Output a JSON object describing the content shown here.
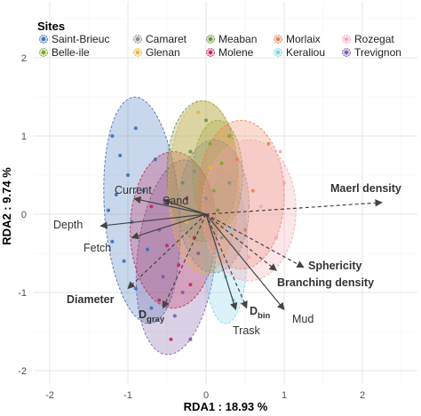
{
  "chart_data": {
    "type": "scatter",
    "subtype": "rda-biplot",
    "xlabel": "RDA1 : 18.93 %",
    "ylabel": "RDA2 : 9.74 %",
    "xlim": [
      -2.25,
      2.5
    ],
    "ylim": [
      -2.2,
      2.5
    ],
    "x_ticks": [
      -2,
      -1,
      0,
      1,
      2
    ],
    "y_ticks": [
      -2,
      -1,
      0,
      1,
      2
    ],
    "grid": true,
    "legend": {
      "title": "Sites",
      "placement": "top",
      "entries": [
        {
          "name": "Saint-Brieuc",
          "color": "#3b6fb6"
        },
        {
          "name": "Belle-ile",
          "color": "#7ca62e"
        },
        {
          "name": "Camaret",
          "color": "#8c8c8c"
        },
        {
          "name": "Glenan",
          "color": "#e8b63c"
        },
        {
          "name": "Meaban",
          "color": "#6e8f3c"
        },
        {
          "name": "Molene",
          "color": "#c2265a"
        },
        {
          "name": "Morlaix",
          "color": "#e87f55"
        },
        {
          "name": "Keraliou",
          "color": "#7fd0e8"
        },
        {
          "name": "Rozegat",
          "color": "#f4a6b4"
        },
        {
          "name": "Trevignon",
          "color": "#7d5aa6"
        }
      ]
    },
    "ellipses": [
      {
        "site": "Saint-Brieuc",
        "cx": -0.82,
        "cy": 0.05,
        "rx": 0.48,
        "ry": 1.45,
        "angle": -4
      },
      {
        "site": "Trevignon",
        "cx": -0.38,
        "cy": -0.55,
        "rx": 0.5,
        "ry": 1.25,
        "angle": 6
      },
      {
        "site": "Molene",
        "cx": -0.42,
        "cy": -0.2,
        "rx": 0.55,
        "ry": 1.0,
        "angle": 0
      },
      {
        "site": "Keraliou",
        "cx": 0.25,
        "cy": -0.45,
        "rx": 0.28,
        "ry": 0.95,
        "angle": 0
      },
      {
        "site": "Belle-ile",
        "cx": 0.15,
        "cy": 0.5,
        "rx": 0.32,
        "ry": 0.7,
        "angle": 0
      },
      {
        "site": "Meaban",
        "cx": -0.05,
        "cy": 0.55,
        "rx": 0.45,
        "ry": 0.9,
        "angle": 0
      },
      {
        "site": "Glenan",
        "cx": -0.03,
        "cy": 0.35,
        "rx": 0.45,
        "ry": 1.1,
        "angle": 0
      },
      {
        "site": "Camaret",
        "cx": 0.1,
        "cy": 0.1,
        "rx": 0.45,
        "ry": 0.85,
        "angle": 0
      },
      {
        "site": "Morlaix",
        "cx": 0.45,
        "cy": 0.25,
        "rx": 0.55,
        "ry": 0.95,
        "angle": 0
      },
      {
        "site": "Rozegat",
        "cx": 0.55,
        "cy": 0.05,
        "rx": 0.6,
        "ry": 0.9,
        "angle": 0
      }
    ],
    "vectors": [
      {
        "label": "Maerl density",
        "x": 2.25,
        "y": 0.15,
        "dashed": true,
        "bold": true
      },
      {
        "label": "Sphericity",
        "x": 1.25,
        "y": -0.68,
        "dashed": true,
        "bold": true
      },
      {
        "label": "Branching density",
        "x": 0.9,
        "y": -0.72,
        "dashed": true,
        "bold": true
      },
      {
        "label": "Diameter",
        "x": -1.0,
        "y": -0.95,
        "dashed": true,
        "bold": true
      },
      {
        "label": "Dgray",
        "x": -0.55,
        "y": -1.2,
        "dashed": true,
        "bold": true
      },
      {
        "label": "Dbin",
        "x": 0.52,
        "y": -1.2,
        "dashed": true,
        "bold": true
      },
      {
        "label": "Depth",
        "x": -1.35,
        "y": -0.15,
        "dashed": false,
        "bold": false
      },
      {
        "label": "Fetch",
        "x": -0.95,
        "y": -0.3,
        "dashed": false,
        "bold": false
      },
      {
        "label": "Current",
        "x": -0.92,
        "y": 0.2,
        "dashed": false,
        "bold": false
      },
      {
        "label": "Sand",
        "x": -0.55,
        "y": 0.18,
        "dashed": false,
        "bold": false
      },
      {
        "label": "Trask",
        "x": 0.38,
        "y": -1.22,
        "dashed": false,
        "bold": false
      },
      {
        "label": "Mud",
        "x": 1.0,
        "y": -1.22,
        "dashed": false,
        "bold": false
      }
    ],
    "points": [
      {
        "site": "Saint-Brieuc",
        "x": -1.2,
        "y": 1.0
      },
      {
        "site": "Saint-Brieuc",
        "x": -1.1,
        "y": 0.75
      },
      {
        "site": "Saint-Brieuc",
        "x": -0.9,
        "y": 1.1
      },
      {
        "site": "Saint-Brieuc",
        "x": -1.0,
        "y": 0.5
      },
      {
        "site": "Saint-Brieuc",
        "x": -0.8,
        "y": 0.3
      },
      {
        "site": "Saint-Brieuc",
        "x": -1.15,
        "y": 0.25
      },
      {
        "site": "Saint-Brieuc",
        "x": -0.95,
        "y": -0.1
      },
      {
        "site": "Saint-Brieuc",
        "x": -1.2,
        "y": -0.35
      },
      {
        "site": "Saint-Brieuc",
        "x": -1.05,
        "y": -0.6
      },
      {
        "site": "Saint-Brieuc",
        "x": -0.75,
        "y": -0.45
      },
      {
        "site": "Saint-Brieuc",
        "x": -0.9,
        "y": -0.95
      },
      {
        "site": "Saint-Brieuc",
        "x": -0.7,
        "y": -1.2
      },
      {
        "site": "Saint-Brieuc",
        "x": -0.65,
        "y": 0.7
      },
      {
        "site": "Saint-Brieuc",
        "x": -1.25,
        "y": 0.05
      },
      {
        "site": "Trevignon",
        "x": -0.4,
        "y": -1.3
      },
      {
        "site": "Trevignon",
        "x": -0.2,
        "y": -1.6
      },
      {
        "site": "Trevignon",
        "x": -0.55,
        "y": -0.8
      },
      {
        "site": "Trevignon",
        "x": -0.3,
        "y": -1.0
      },
      {
        "site": "Trevignon",
        "x": -0.1,
        "y": -0.5
      },
      {
        "site": "Trevignon",
        "x": -0.6,
        "y": -0.2
      },
      {
        "site": "Molene",
        "x": -0.5,
        "y": -0.4
      },
      {
        "site": "Molene",
        "x": -0.35,
        "y": -0.65
      },
      {
        "site": "Molene",
        "x": -0.7,
        "y": 0.1
      },
      {
        "site": "Molene",
        "x": -0.2,
        "y": -0.9
      },
      {
        "site": "Molene",
        "x": -0.45,
        "y": -1.6
      },
      {
        "site": "Molene",
        "x": -0.6,
        "y": -1.1
      },
      {
        "site": "Molene",
        "x": -0.25,
        "y": 0.2
      },
      {
        "site": "Molene",
        "x": -0.15,
        "y": -0.3
      },
      {
        "site": "Keraliou",
        "x": 0.25,
        "y": -0.8
      },
      {
        "site": "Keraliou",
        "x": 0.35,
        "y": -1.1
      },
      {
        "site": "Keraliou",
        "x": 0.15,
        "y": -0.5
      },
      {
        "site": "Keraliou",
        "x": 0.3,
        "y": -0.2
      },
      {
        "site": "Belle-ile",
        "x": 0.05,
        "y": 0.9
      },
      {
        "site": "Belle-ile",
        "x": 0.2,
        "y": 0.65
      },
      {
        "site": "Belle-ile",
        "x": 0.3,
        "y": 1.0
      },
      {
        "site": "Belle-ile",
        "x": 0.1,
        "y": 0.3
      },
      {
        "site": "Meaban",
        "x": -0.2,
        "y": 0.8
      },
      {
        "site": "Meaban",
        "x": 0.0,
        "y": 1.2
      },
      {
        "site": "Meaban",
        "x": -0.3,
        "y": 0.4
      },
      {
        "site": "Meaban",
        "x": 0.15,
        "y": 0.05
      },
      {
        "site": "Glenan",
        "x": -0.1,
        "y": 1.3
      },
      {
        "site": "Glenan",
        "x": 0.05,
        "y": 0.6
      },
      {
        "site": "Glenan",
        "x": -0.25,
        "y": -0.1
      },
      {
        "site": "Glenan",
        "x": 0.2,
        "y": 1.05
      },
      {
        "site": "Camaret",
        "x": 0.0,
        "y": 0.2
      },
      {
        "site": "Camaret",
        "x": 0.3,
        "y": 0.4
      },
      {
        "site": "Camaret",
        "x": -0.15,
        "y": 0.55
      },
      {
        "site": "Camaret",
        "x": 0.2,
        "y": -0.3
      },
      {
        "site": "Morlaix",
        "x": 0.4,
        "y": 0.7
      },
      {
        "site": "Morlaix",
        "x": 0.6,
        "y": 0.3
      },
      {
        "site": "Morlaix",
        "x": 0.8,
        "y": 0.9
      },
      {
        "site": "Morlaix",
        "x": 0.5,
        "y": -0.2
      },
      {
        "site": "Rozegat",
        "x": 0.7,
        "y": 0.1
      },
      {
        "site": "Rozegat",
        "x": 0.9,
        "y": -0.3
      },
      {
        "site": "Rozegat",
        "x": 1.0,
        "y": 0.4
      },
      {
        "site": "Rozegat",
        "x": 0.55,
        "y": -0.55
      },
      {
        "site": "Rozegat",
        "x": 0.95,
        "y": 0.8
      }
    ]
  }
}
